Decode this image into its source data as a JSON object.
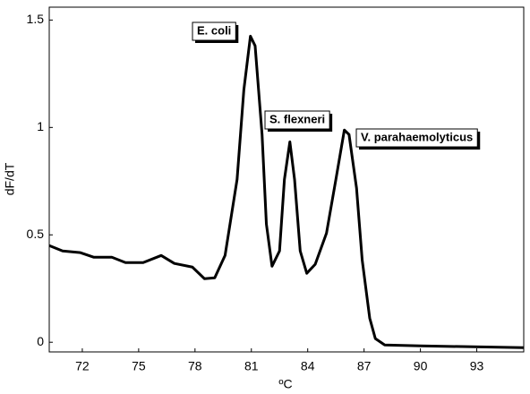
{
  "chart_data": {
    "type": "line",
    "x_label": "ºC",
    "y_label": "dF/dT",
    "x": [
      70.24,
      70.95,
      71.9,
      72.6,
      73.57,
      74.3,
      75.24,
      76.2,
      76.9,
      77.86,
      78.5,
      79.05,
      79.6,
      80.24,
      80.6,
      80.95,
      81.2,
      81.57,
      81.8,
      82.1,
      82.5,
      82.76,
      83.05,
      83.3,
      83.6,
      83.95,
      84.4,
      85.0,
      85.5,
      85.95,
      86.2,
      86.6,
      86.9,
      87.3,
      87.6,
      88.1,
      90,
      95.5
    ],
    "series": [
      {
        "color": "#000000",
        "values": [
          0.45,
          0.425,
          0.417,
          0.396,
          0.396,
          0.371,
          0.371,
          0.404,
          0.367,
          0.35,
          0.296,
          0.3,
          0.404,
          0.758,
          1.175,
          1.425,
          1.38,
          0.967,
          0.55,
          0.354,
          0.425,
          0.758,
          0.933,
          0.758,
          0.425,
          0.321,
          0.363,
          0.508,
          0.758,
          0.988,
          0.967,
          0.717,
          0.383,
          0.1125,
          0.017,
          -0.0125,
          -0.017,
          -0.025
        ]
      }
    ],
    "annotations": [
      "E. coli",
      "S. flexneri",
      "V. parahaemolyticus"
    ],
    "xlim": [
      70.24,
      95.5
    ],
    "xticks": [
      72,
      75,
      78,
      81,
      84,
      87,
      90,
      93
    ],
    "ylim": [
      -0.045,
      1.56
    ],
    "yticks": [
      0,
      0.5,
      1,
      1.5
    ]
  }
}
